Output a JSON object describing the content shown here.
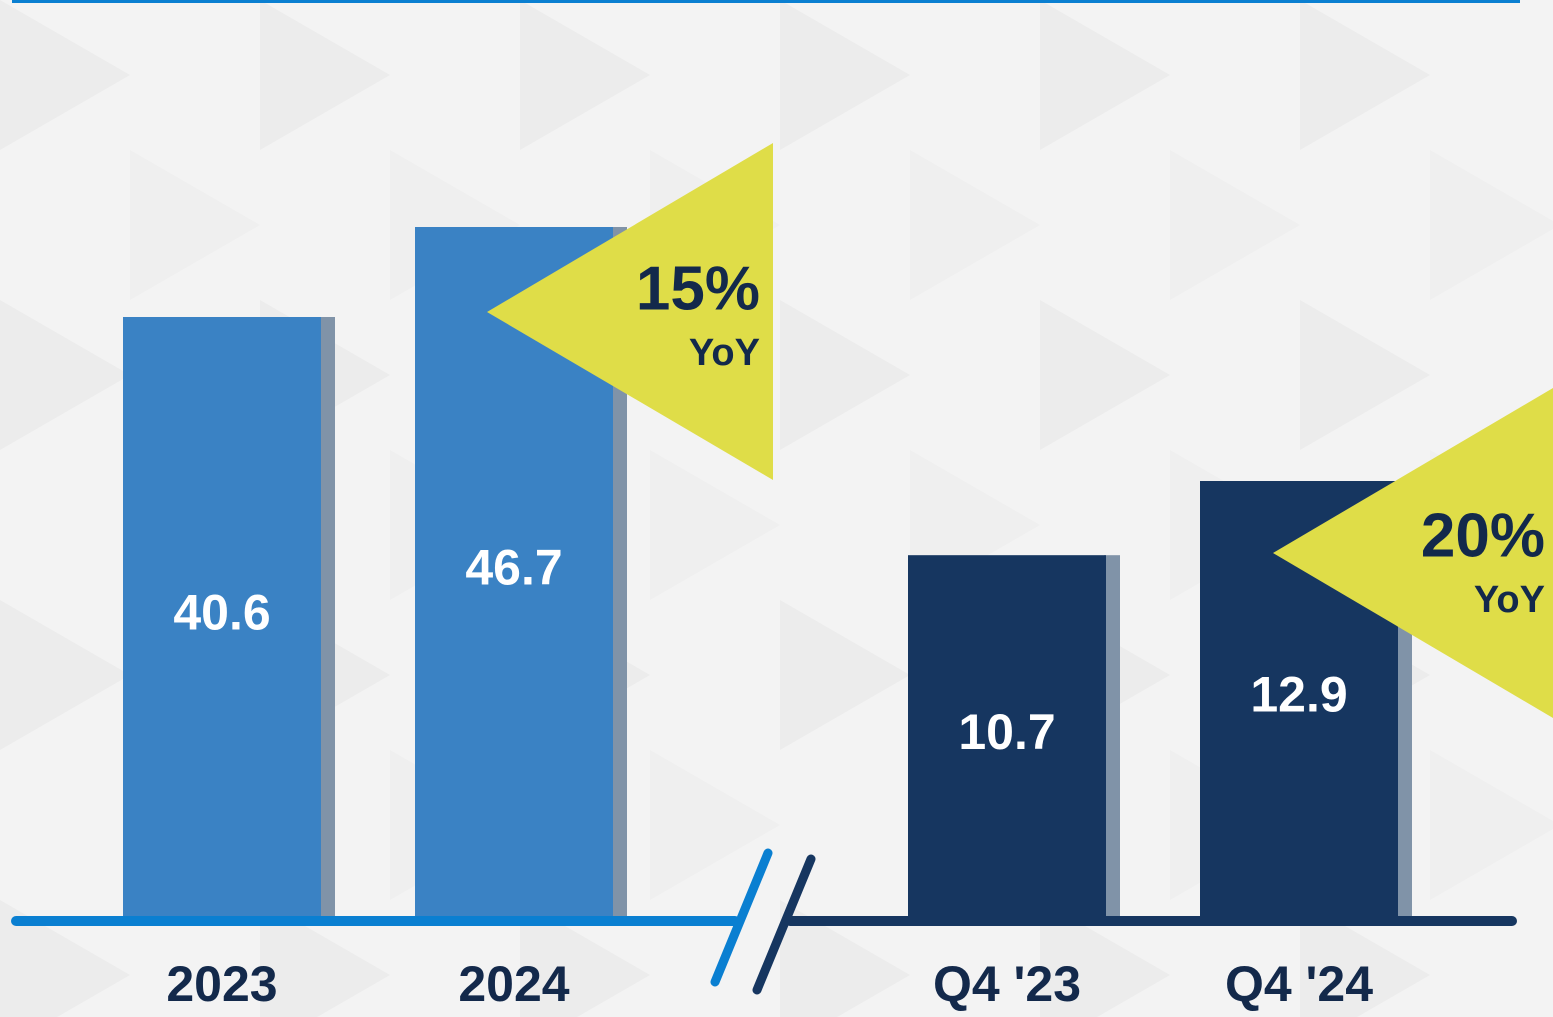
{
  "chart_data": [
    {
      "type": "bar",
      "categories": [
        "2023",
        "2024"
      ],
      "values": [
        40.6,
        46.7
      ],
      "color": "#3a82c4",
      "annotation": {
        "change": "15%",
        "label": "YoY"
      }
    },
    {
      "type": "bar",
      "categories": [
        "Q4 '23",
        "Q4 '24"
      ],
      "values": [
        10.7,
        12.9
      ],
      "color": "#163660",
      "annotation": {
        "change": "20%",
        "label": "YoY"
      }
    }
  ]
}
